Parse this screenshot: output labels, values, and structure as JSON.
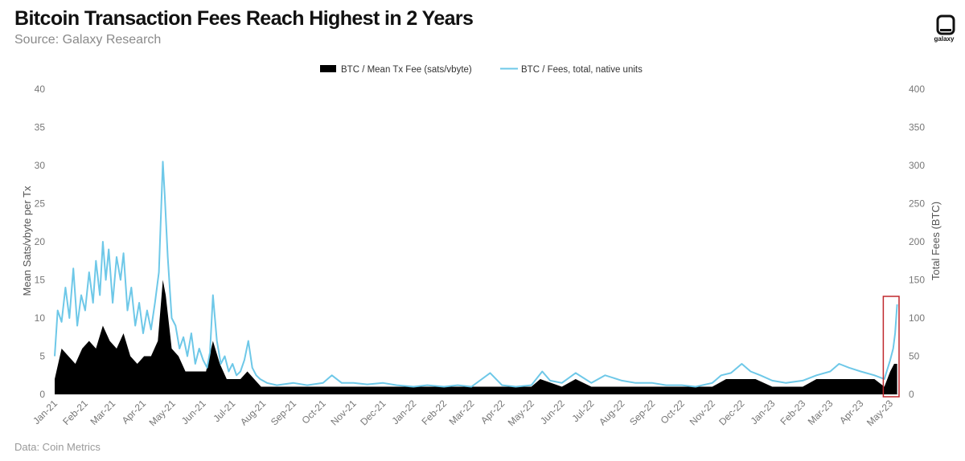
{
  "header": {
    "title": "Bitcoin Transaction Fees Reach Highest in 2 Years",
    "subtitle": "Source: Galaxy Research"
  },
  "footer": {
    "note": "Data: Coin Metrics"
  },
  "brand": {
    "logo_text": "galaxy",
    "icon": "galaxy-logo-icon"
  },
  "colors": {
    "fee_line": "#6EC8E8",
    "mean_fee_area": "#000000",
    "highlight_box": "#C0282D",
    "gridline": "#dddddd"
  },
  "chart_data": {
    "type": "area",
    "legend_position": "top-center",
    "grid": false,
    "highlight": {
      "label": "",
      "range": [
        "2023-04-24",
        "2023-05-10"
      ]
    },
    "x_tick_labels": [
      "Jan-21",
      "Feb-21",
      "Mar-21",
      "Apr-21",
      "May-21",
      "Jun-21",
      "Jul-21",
      "Aug-21",
      "Sep-21",
      "Oct-21",
      "Nov-21",
      "Dec-21",
      "Jan-22",
      "Feb-22",
      "Mar-22",
      "Apr-22",
      "May-22",
      "Jun-22",
      "Jul-22",
      "Aug-22",
      "Sep-22",
      "Oct-22",
      "Nov-22",
      "Dec-22",
      "Jan-23",
      "Feb-23",
      "Mar-23",
      "Apr-23",
      "May-23"
    ],
    "y_left": {
      "label": "Mean Sats/vbyte per Tx",
      "ticks": [
        0,
        5,
        10,
        15,
        20,
        25,
        30,
        35,
        40
      ],
      "range": [
        0,
        40
      ]
    },
    "y_right": {
      "label": "Total Fees (BTC)",
      "ticks": [
        0,
        50,
        100,
        150,
        200,
        250,
        300,
        350,
        400
      ],
      "range": [
        0,
        400
      ]
    },
    "series": [
      {
        "name": "BTC / Mean Tx Fee (sats/vbyte)",
        "axis": "left",
        "style": "area",
        "points": [
          [
            "2021-01-01",
            2
          ],
          [
            "2021-01-08",
            6
          ],
          [
            "2021-01-15",
            5
          ],
          [
            "2021-01-22",
            4
          ],
          [
            "2021-01-29",
            6
          ],
          [
            "2021-02-05",
            7
          ],
          [
            "2021-02-12",
            6
          ],
          [
            "2021-02-19",
            9
          ],
          [
            "2021-02-26",
            7
          ],
          [
            "2021-03-05",
            6
          ],
          [
            "2021-03-12",
            8
          ],
          [
            "2021-03-19",
            5
          ],
          [
            "2021-03-26",
            4
          ],
          [
            "2021-04-02",
            5
          ],
          [
            "2021-04-09",
            5
          ],
          [
            "2021-04-16",
            7
          ],
          [
            "2021-04-21",
            15
          ],
          [
            "2021-04-24",
            13
          ],
          [
            "2021-04-30",
            6
          ],
          [
            "2021-05-07",
            5
          ],
          [
            "2021-05-14",
            3
          ],
          [
            "2021-05-21",
            3
          ],
          [
            "2021-05-28",
            3
          ],
          [
            "2021-06-04",
            3
          ],
          [
            "2021-06-11",
            7
          ],
          [
            "2021-06-18",
            4
          ],
          [
            "2021-06-25",
            2
          ],
          [
            "2021-07-02",
            2
          ],
          [
            "2021-07-09",
            2
          ],
          [
            "2021-07-16",
            3
          ],
          [
            "2021-07-23",
            2
          ],
          [
            "2021-07-30",
            1
          ],
          [
            "2021-08-15",
            1
          ],
          [
            "2021-09-01",
            1
          ],
          [
            "2021-09-15",
            1
          ],
          [
            "2021-10-01",
            1
          ],
          [
            "2021-10-15",
            1
          ],
          [
            "2021-11-01",
            1
          ],
          [
            "2021-11-15",
            1
          ],
          [
            "2021-12-01",
            1
          ],
          [
            "2021-12-15",
            1
          ],
          [
            "2022-01-01",
            1
          ],
          [
            "2022-02-01",
            1
          ],
          [
            "2022-03-01",
            1
          ],
          [
            "2022-04-01",
            1
          ],
          [
            "2022-05-01",
            1
          ],
          [
            "2022-05-10",
            2
          ],
          [
            "2022-06-01",
            1
          ],
          [
            "2022-06-15",
            2
          ],
          [
            "2022-07-01",
            1
          ],
          [
            "2022-08-01",
            1
          ],
          [
            "2022-09-01",
            1
          ],
          [
            "2022-10-01",
            1
          ],
          [
            "2022-11-01",
            1
          ],
          [
            "2022-11-15",
            2
          ],
          [
            "2022-12-01",
            2
          ],
          [
            "2022-12-15",
            2
          ],
          [
            "2023-01-01",
            1
          ],
          [
            "2023-02-01",
            1
          ],
          [
            "2023-02-15",
            2
          ],
          [
            "2023-03-01",
            2
          ],
          [
            "2023-03-15",
            2
          ],
          [
            "2023-04-01",
            2
          ],
          [
            "2023-04-15",
            2
          ],
          [
            "2023-04-25",
            1
          ],
          [
            "2023-05-01",
            3
          ],
          [
            "2023-05-05",
            4
          ],
          [
            "2023-05-08",
            4
          ]
        ]
      },
      {
        "name": "BTC / Fees, total, native units",
        "axis": "right",
        "style": "line",
        "points": [
          [
            "2021-01-01",
            50
          ],
          [
            "2021-01-04",
            110
          ],
          [
            "2021-01-08",
            95
          ],
          [
            "2021-01-12",
            140
          ],
          [
            "2021-01-16",
            100
          ],
          [
            "2021-01-20",
            165
          ],
          [
            "2021-01-24",
            90
          ],
          [
            "2021-01-28",
            130
          ],
          [
            "2021-02-01",
            110
          ],
          [
            "2021-02-05",
            160
          ],
          [
            "2021-02-09",
            120
          ],
          [
            "2021-02-12",
            175
          ],
          [
            "2021-02-16",
            130
          ],
          [
            "2021-02-19",
            200
          ],
          [
            "2021-02-22",
            150
          ],
          [
            "2021-02-25",
            190
          ],
          [
            "2021-03-01",
            120
          ],
          [
            "2021-03-05",
            180
          ],
          [
            "2021-03-09",
            150
          ],
          [
            "2021-03-12",
            185
          ],
          [
            "2021-03-16",
            110
          ],
          [
            "2021-03-20",
            140
          ],
          [
            "2021-03-24",
            90
          ],
          [
            "2021-03-28",
            120
          ],
          [
            "2021-04-01",
            80
          ],
          [
            "2021-04-05",
            110
          ],
          [
            "2021-04-09",
            85
          ],
          [
            "2021-04-13",
            120
          ],
          [
            "2021-04-17",
            160
          ],
          [
            "2021-04-21",
            305
          ],
          [
            "2021-04-23",
            260
          ],
          [
            "2021-04-26",
            180
          ],
          [
            "2021-04-30",
            100
          ],
          [
            "2021-05-04",
            90
          ],
          [
            "2021-05-08",
            60
          ],
          [
            "2021-05-12",
            75
          ],
          [
            "2021-05-16",
            50
          ],
          [
            "2021-05-20",
            80
          ],
          [
            "2021-05-24",
            40
          ],
          [
            "2021-05-28",
            60
          ],
          [
            "2021-06-01",
            45
          ],
          [
            "2021-06-05",
            35
          ],
          [
            "2021-06-08",
            55
          ],
          [
            "2021-06-11",
            130
          ],
          [
            "2021-06-15",
            70
          ],
          [
            "2021-06-19",
            40
          ],
          [
            "2021-06-23",
            50
          ],
          [
            "2021-06-27",
            30
          ],
          [
            "2021-07-01",
            40
          ],
          [
            "2021-07-05",
            25
          ],
          [
            "2021-07-09",
            30
          ],
          [
            "2021-07-13",
            45
          ],
          [
            "2021-07-17",
            70
          ],
          [
            "2021-07-21",
            35
          ],
          [
            "2021-07-25",
            25
          ],
          [
            "2021-07-29",
            20
          ],
          [
            "2021-08-05",
            15
          ],
          [
            "2021-08-15",
            12
          ],
          [
            "2021-09-01",
            15
          ],
          [
            "2021-09-15",
            12
          ],
          [
            "2021-10-01",
            15
          ],
          [
            "2021-10-10",
            25
          ],
          [
            "2021-10-20",
            15
          ],
          [
            "2021-11-01",
            15
          ],
          [
            "2021-11-15",
            13
          ],
          [
            "2021-12-01",
            15
          ],
          [
            "2021-12-15",
            12
          ],
          [
            "2022-01-01",
            10
          ],
          [
            "2022-01-15",
            12
          ],
          [
            "2022-02-01",
            10
          ],
          [
            "2022-02-15",
            12
          ],
          [
            "2022-03-01",
            10
          ],
          [
            "2022-03-20",
            28
          ],
          [
            "2022-04-01",
            12
          ],
          [
            "2022-04-15",
            10
          ],
          [
            "2022-05-01",
            12
          ],
          [
            "2022-05-12",
            30
          ],
          [
            "2022-05-20",
            18
          ],
          [
            "2022-06-01",
            15
          ],
          [
            "2022-06-15",
            28
          ],
          [
            "2022-07-01",
            15
          ],
          [
            "2022-07-15",
            25
          ],
          [
            "2022-08-01",
            18
          ],
          [
            "2022-08-15",
            15
          ],
          [
            "2022-09-01",
            15
          ],
          [
            "2022-09-15",
            12
          ],
          [
            "2022-10-01",
            12
          ],
          [
            "2022-10-15",
            10
          ],
          [
            "2022-11-01",
            15
          ],
          [
            "2022-11-10",
            25
          ],
          [
            "2022-11-20",
            28
          ],
          [
            "2022-12-01",
            40
          ],
          [
            "2022-12-10",
            30
          ],
          [
            "2022-12-20",
            25
          ],
          [
            "2023-01-01",
            18
          ],
          [
            "2023-01-15",
            15
          ],
          [
            "2023-02-01",
            18
          ],
          [
            "2023-02-15",
            25
          ],
          [
            "2023-03-01",
            30
          ],
          [
            "2023-03-10",
            40
          ],
          [
            "2023-03-20",
            35
          ],
          [
            "2023-04-01",
            30
          ],
          [
            "2023-04-15",
            25
          ],
          [
            "2023-04-25",
            20
          ],
          [
            "2023-05-01",
            45
          ],
          [
            "2023-05-04",
            60
          ],
          [
            "2023-05-06",
            80
          ],
          [
            "2023-05-08",
            118
          ]
        ]
      }
    ]
  }
}
